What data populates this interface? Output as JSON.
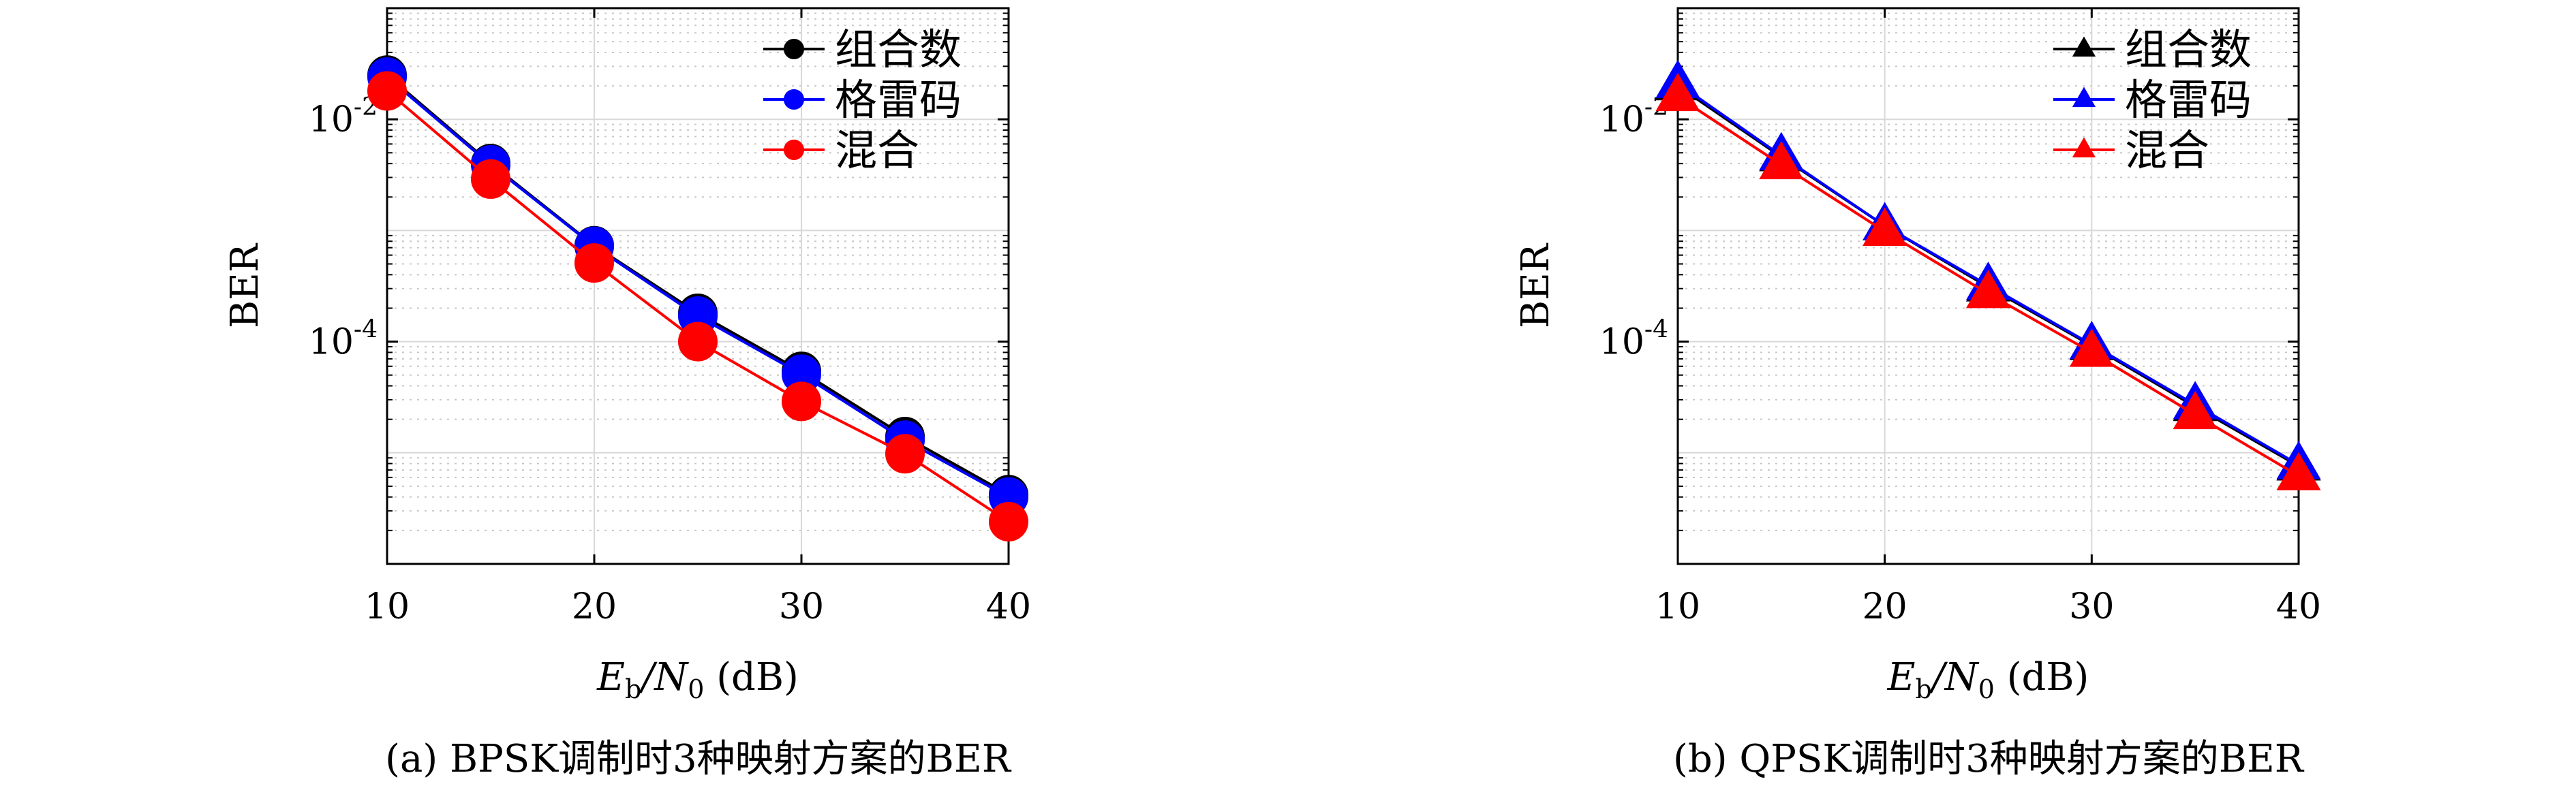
{
  "chart_data": [
    {
      "type": "line",
      "title": "",
      "caption": "(a) BPSK调制时3种映射方案的BER",
      "xlabel": {
        "main": "E",
        "sub1": "b",
        "slash": "/N",
        "sub2": "0",
        "unit": " (dB)"
      },
      "ylabel": "BER",
      "log_y": true,
      "grid": true,
      "legend_position": "top-right",
      "xlim": [
        10,
        40
      ],
      "ylim": [
        1e-06,
        0.1
      ],
      "x_ticks": [
        10,
        20,
        30,
        40
      ],
      "x_tick_labels": [
        "10",
        "20",
        "30",
        "40"
      ],
      "y_ticks": [
        0.01,
        0.0001
      ],
      "y_tick_labels": [
        {
          "base": "10",
          "exp": "-2"
        },
        {
          "base": "10",
          "exp": "-4"
        }
      ],
      "x": [
        10,
        15,
        20,
        25,
        30,
        35,
        40
      ],
      "series": [
        {
          "name": "组合数",
          "color": "#000000",
          "marker": "circle",
          "values": [
            0.025,
            0.004,
            0.00073,
            0.00018,
            5.4e-05,
            1.4e-05,
            4.2e-06
          ]
        },
        {
          "name": "格雷码",
          "color": "#0000ff",
          "marker": "circle",
          "values": [
            0.024,
            0.0039,
            0.00072,
            0.00017,
            5.1e-05,
            1.3e-05,
            4e-06
          ]
        },
        {
          "name": "混合",
          "color": "#ff0000",
          "marker": "circle",
          "values": [
            0.018,
            0.0029,
            0.00051,
            0.0001,
            2.9e-05,
            9.8e-06,
            2.4e-06
          ]
        }
      ]
    },
    {
      "type": "line",
      "title": "",
      "caption": "(b) QPSK调制时3种映射方案的BER",
      "xlabel": {
        "main": "E",
        "sub1": "b",
        "slash": "/N",
        "sub2": "0",
        "unit": " (dB)"
      },
      "ylabel": "BER",
      "log_y": true,
      "grid": true,
      "legend_position": "top-right",
      "xlim": [
        10,
        40
      ],
      "ylim": [
        1e-06,
        0.1
      ],
      "x_ticks": [
        10,
        20,
        30,
        40
      ],
      "x_tick_labels": [
        "10",
        "20",
        "30",
        "40"
      ],
      "y_ticks": [
        0.01,
        0.0001
      ],
      "y_tick_labels": [
        {
          "base": "10",
          "exp": "-2"
        },
        {
          "base": "10",
          "exp": "-4"
        }
      ],
      "x": [
        10,
        15,
        20,
        25,
        30,
        35,
        40
      ],
      "series": [
        {
          "name": "组合数",
          "color": "#000000",
          "marker": "triangle",
          "values": [
            0.02,
            0.0046,
            0.0011,
            0.00031,
            9.2e-05,
            2.6e-05,
            7.6e-06
          ]
        },
        {
          "name": "格雷码",
          "color": "#0000ff",
          "marker": "triangle",
          "values": [
            0.021,
            0.0047,
            0.0011,
            0.00032,
            9.4e-05,
            2.7e-05,
            7.8e-06
          ]
        },
        {
          "name": "混合",
          "color": "#ff0000",
          "marker": "triangle",
          "values": [
            0.016,
            0.0039,
            0.00098,
            0.00027,
            8e-05,
            2.2e-05,
            6.2e-06
          ]
        }
      ]
    }
  ]
}
